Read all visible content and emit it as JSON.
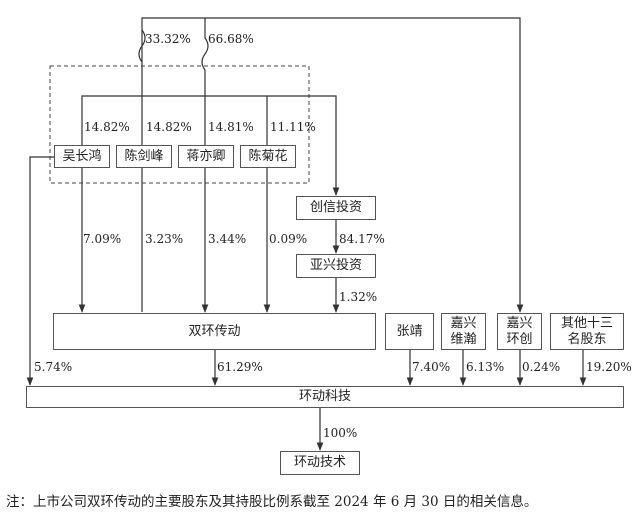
{
  "entities": {
    "wu": "吴长鸿",
    "chenjianfeng": "陈剑峰",
    "jiangyiqing": "蒋亦卿",
    "chenjuhua": "陈菊花",
    "chuangxin": "创信投资",
    "yaxing": "亚兴投资",
    "shuanghuan": "双环传动",
    "zhangjing": "张靖",
    "jiaxing_weihan": "嘉兴\n维瀚",
    "jiaxing_huanchuang": "嘉兴\n环创",
    "others": "其他十三\n名股东",
    "huandong_keji": "环动科技",
    "huandong_jishu": "环动技术"
  },
  "percentages": {
    "p3332": "33.32%",
    "p6668": "66.68%",
    "wu_chuangxin": "14.82%",
    "chen_chuangxin": "14.82%",
    "jiang_chuangxin": "14.81%",
    "chenjuhua_chuangxin": "11.11%",
    "wu_sh": "7.09%",
    "chen_sh": "3.23%",
    "jiang_sh": "3.44%",
    "chenjuhua_sh": "0.09%",
    "chuangxin_yaxing": "84.17%",
    "yaxing_sh": "1.32%",
    "wu_keji": "5.74%",
    "sh_keji": "61.29%",
    "zhang_keji": "7.40%",
    "weihan_keji": "6.13%",
    "huanchuang_keji": "0.24%",
    "others_keji": "19.20%",
    "keji_jishu": "100%"
  },
  "note": "注：上市公司双环传动的主要股东及其持股比例系截至 2024 年 6 月 30 日的相关信息。"
}
